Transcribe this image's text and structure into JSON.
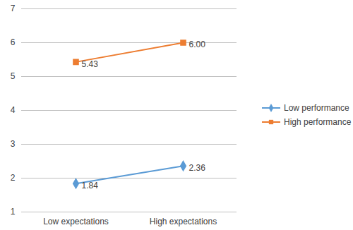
{
  "chart_data": {
    "type": "line",
    "categories": [
      "Low expectations",
      "High expectations"
    ],
    "series": [
      {
        "name": "Low performance",
        "color": "#5B9BD5",
        "marker": "diamond",
        "values": [
          1.84,
          2.36
        ],
        "value_labels": [
          "1.84",
          "2.36"
        ]
      },
      {
        "name": "High performance",
        "color": "#ED7D31",
        "marker": "square",
        "values": [
          5.43,
          6.0
        ],
        "value_labels": [
          "5.43",
          "6.00"
        ]
      }
    ],
    "ylim": [
      1,
      7
    ],
    "yticks": [
      1,
      2,
      3,
      4,
      5,
      6,
      7
    ],
    "grid": true,
    "legend": "right",
    "data_labels": true
  }
}
